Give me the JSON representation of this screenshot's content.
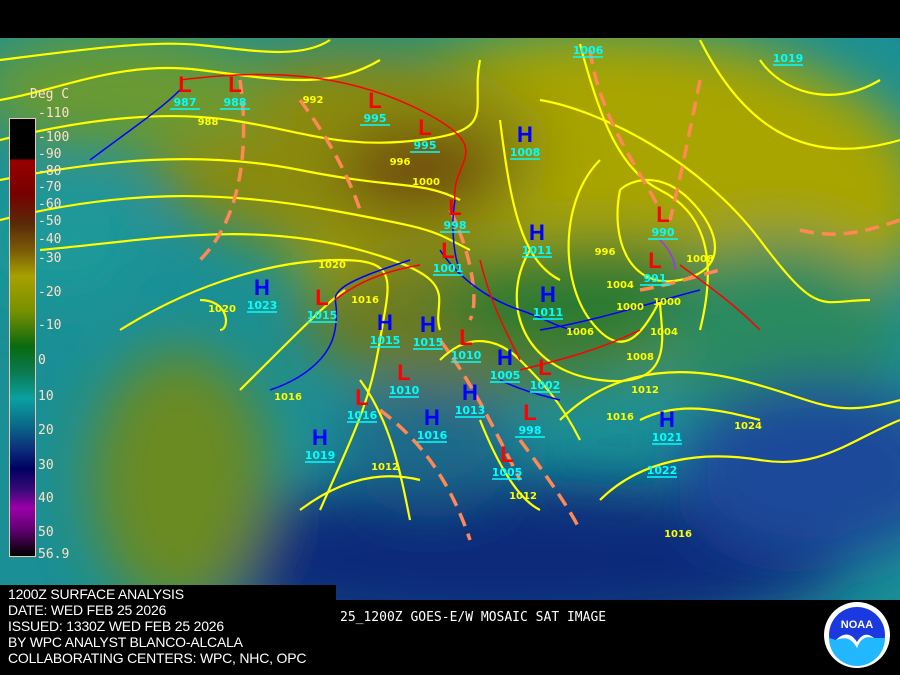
{
  "colors": {
    "isobar": "#ffff00",
    "cold_front": "#0000ff",
    "warm_front": "#ff0000",
    "trough": "#ff8855",
    "pressure_label": "#00ffff",
    "high": "#0000ff",
    "low": "#ff0000",
    "occluded": "#9933ff"
  },
  "colorbar": {
    "title": "Deg C",
    "labels": [
      "-110",
      "-100",
      "-90",
      "-80",
      "-70",
      "-60",
      "-50",
      "-40",
      "-30",
      "-20",
      "-10",
      "0",
      "10",
      "20",
      "30",
      "40",
      "50",
      "56.9"
    ]
  },
  "pressure_centers": [
    {
      "type": "L",
      "value": "987"
    },
    {
      "type": "L",
      "value": "988"
    },
    {
      "type": "L",
      "value": "995"
    },
    {
      "type": "L",
      "value": "995"
    },
    {
      "type": "H",
      "value": "1008"
    },
    {
      "type": "L",
      "value": "998"
    },
    {
      "type": "L",
      "value": "1001"
    },
    {
      "type": "H",
      "value": "1011"
    },
    {
      "type": "L",
      "value": "990"
    },
    {
      "type": "L",
      "value": "991"
    },
    {
      "type": "H",
      "value": "1023"
    },
    {
      "type": "L",
      "value": "1015"
    },
    {
      "type": "H",
      "value": "1015"
    },
    {
      "type": "H",
      "value": "1015"
    },
    {
      "type": "H",
      "value": "1011"
    },
    {
      "type": "H",
      "value": "1019"
    },
    {
      "type": "L",
      "value": "1010"
    },
    {
      "type": "L",
      "value": "1016"
    },
    {
      "type": "H",
      "value": "1016"
    },
    {
      "type": "L",
      "value": "1010"
    },
    {
      "type": "H",
      "value": "1013"
    },
    {
      "type": "H",
      "value": "1005"
    },
    {
      "type": "L",
      "value": "1002"
    },
    {
      "type": "L",
      "value": "998"
    },
    {
      "type": "L",
      "value": "1005"
    },
    {
      "type": "H",
      "value": "1021"
    }
  ],
  "standalone_pressure_labels": [
    "1006",
    "1019",
    "1022"
  ],
  "isobar_labels": [
    "988",
    "992",
    "996",
    "1000",
    "1020",
    "1020",
    "1016",
    "1016",
    "1012",
    "1008",
    "1004",
    "1000",
    "1006",
    "996",
    "1000",
    "1004",
    "1008",
    "1012",
    "1016",
    "1024",
    "1016",
    "1012"
  ],
  "info": {
    "line1": "1200Z SURFACE ANALYSIS",
    "line2": "DATE: WED FEB 25 2026",
    "line3": "ISSUED: 1330Z WED FEB 25 2026",
    "line4": "BY WPC ANALYST BLANCO-ALCALA",
    "line5": "COLLABORATING CENTERS: WPC, NHC, OPC"
  },
  "sat_caption": "25_1200Z GOES-E/W MOSAIC SAT IMAGE",
  "logo": {
    "text": "NOAA",
    "icon": "noaa-logo"
  }
}
